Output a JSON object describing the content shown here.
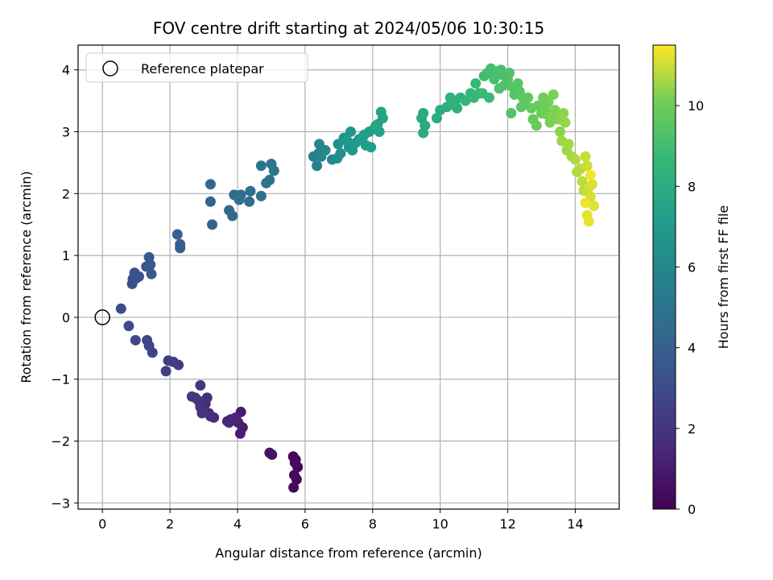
{
  "chart_data": {
    "type": "scatter",
    "title": "FOV centre drift starting at 2024/05/06 10:30:15",
    "xlabel": "Angular distance from reference (arcmin)",
    "ylabel": "Rotation from reference (arcmin)",
    "colorbar_label": "Hours from first FF file",
    "xlim": [
      -0.72,
      15.3
    ],
    "ylim": [
      -3.1,
      4.4
    ],
    "x_ticks": [
      0,
      2,
      4,
      6,
      8,
      10,
      12,
      14
    ],
    "y_ticks": [
      -3,
      -2,
      -1,
      0,
      1,
      2,
      3,
      4
    ],
    "colorbar_range": [
      0,
      11.5
    ],
    "colorbar_ticks": [
      0,
      2,
      4,
      6,
      8,
      10
    ],
    "colormap": "viridis",
    "grid": true,
    "legend": {
      "placement": "top-left",
      "entries": [
        "Reference platepar"
      ]
    },
    "reference_point": {
      "x": 0,
      "y": 0
    },
    "series": [
      {
        "marker": "filled-circle",
        "points": [
          [
            5.65,
            -2.25,
            0.1
          ],
          [
            5.72,
            -2.3,
            0.15
          ],
          [
            5.78,
            -2.42,
            0.2
          ],
          [
            5.68,
            -2.55,
            0.25
          ],
          [
            5.75,
            -2.62,
            0.3
          ],
          [
            5.66,
            -2.75,
            0.35
          ],
          [
            5.7,
            -2.35,
            0.4
          ],
          [
            4.95,
            -2.19,
            0.6
          ],
          [
            5.02,
            -2.22,
            0.7
          ],
          [
            4.1,
            -1.53,
            1.0
          ],
          [
            4.15,
            -1.78,
            1.05
          ],
          [
            4.08,
            -1.88,
            1.1
          ],
          [
            4.02,
            -1.7,
            1.15
          ],
          [
            3.7,
            -1.68,
            1.3
          ],
          [
            3.8,
            -1.65,
            1.35
          ],
          [
            3.95,
            -1.62,
            1.4
          ],
          [
            3.75,
            -1.7,
            1.45
          ],
          [
            3.15,
            -1.55,
            1.6
          ],
          [
            3.3,
            -1.62,
            1.65
          ],
          [
            3.2,
            -1.6,
            1.7
          ],
          [
            3.05,
            -1.4,
            1.75
          ],
          [
            3.1,
            -1.3,
            1.8
          ],
          [
            2.9,
            -1.45,
            1.9
          ],
          [
            2.95,
            -1.55,
            1.95
          ],
          [
            2.85,
            -1.35,
            2.0
          ],
          [
            2.75,
            -1.3,
            2.05
          ],
          [
            2.65,
            -1.28,
            2.1
          ],
          [
            2.9,
            -1.1,
            2.15
          ],
          [
            2.25,
            -0.77,
            2.3
          ],
          [
            2.1,
            -0.72,
            2.35
          ],
          [
            1.95,
            -0.7,
            2.4
          ],
          [
            1.88,
            -0.87,
            2.45
          ],
          [
            1.48,
            -0.57,
            2.6
          ],
          [
            1.38,
            -0.46,
            2.65
          ],
          [
            1.32,
            -0.37,
            2.7
          ],
          [
            0.98,
            -0.37,
            2.8
          ],
          [
            0.78,
            -0.14,
            2.9
          ],
          [
            0.55,
            0.14,
            3.0
          ],
          [
            0.88,
            0.54,
            3.2
          ],
          [
            0.9,
            0.62,
            3.25
          ],
          [
            1.0,
            0.63,
            3.3
          ],
          [
            0.95,
            0.72,
            3.35
          ],
          [
            1.08,
            0.66,
            3.4
          ],
          [
            1.3,
            0.82,
            3.5
          ],
          [
            1.45,
            0.7,
            3.55
          ],
          [
            1.42,
            0.85,
            3.6
          ],
          [
            1.38,
            0.97,
            3.65
          ],
          [
            2.3,
            1.12,
            3.85
          ],
          [
            2.3,
            1.18,
            3.9
          ],
          [
            2.22,
            1.34,
            3.95
          ],
          [
            3.25,
            1.5,
            4.1
          ],
          [
            3.2,
            1.87,
            4.15
          ],
          [
            3.2,
            2.15,
            4.2
          ],
          [
            3.85,
            1.64,
            4.4
          ],
          [
            3.75,
            1.73,
            4.45
          ],
          [
            3.9,
            1.98,
            4.5
          ],
          [
            4.05,
            1.93,
            4.55
          ],
          [
            4.1,
            1.98,
            4.6
          ],
          [
            4.35,
            1.87,
            4.65
          ],
          [
            4.38,
            2.04,
            4.7
          ],
          [
            4.05,
            1.9,
            4.75
          ],
          [
            4.7,
            1.96,
            4.85
          ],
          [
            4.85,
            2.17,
            4.9
          ],
          [
            4.95,
            2.22,
            4.95
          ],
          [
            4.7,
            2.45,
            5.0
          ],
          [
            5.0,
            2.48,
            5.05
          ],
          [
            5.08,
            2.37,
            5.1
          ],
          [
            6.35,
            2.45,
            5.6
          ],
          [
            6.25,
            2.6,
            5.7
          ],
          [
            6.4,
            2.65,
            5.8
          ],
          [
            6.48,
            2.6,
            5.9
          ],
          [
            6.42,
            2.8,
            6.0
          ],
          [
            6.6,
            2.7,
            6.1
          ],
          [
            6.8,
            2.55,
            6.2
          ],
          [
            6.95,
            2.57,
            6.3
          ],
          [
            7.05,
            2.65,
            6.4
          ],
          [
            6.98,
            2.8,
            6.5
          ],
          [
            7.15,
            2.9,
            6.6
          ],
          [
            7.3,
            2.75,
            6.7
          ],
          [
            7.25,
            2.85,
            6.8
          ],
          [
            7.35,
            3.0,
            6.85
          ],
          [
            7.4,
            2.7,
            6.95
          ],
          [
            7.5,
            2.82,
            7.0
          ],
          [
            7.6,
            2.88,
            7.05
          ],
          [
            7.75,
            2.95,
            7.1
          ],
          [
            7.8,
            2.78,
            7.15
          ],
          [
            7.9,
            3.0,
            7.2
          ],
          [
            7.7,
            2.9,
            7.25
          ],
          [
            7.95,
            2.75,
            7.3
          ],
          [
            8.05,
            3.05,
            7.35
          ],
          [
            8.15,
            3.12,
            7.4
          ],
          [
            8.2,
            3.0,
            7.45
          ],
          [
            8.3,
            3.22,
            7.5
          ],
          [
            8.25,
            3.32,
            7.55
          ],
          [
            8.1,
            3.1,
            7.6
          ],
          [
            9.45,
            3.22,
            7.8
          ],
          [
            9.5,
            3.3,
            7.85
          ],
          [
            9.55,
            3.1,
            7.9
          ],
          [
            9.5,
            2.98,
            7.95
          ],
          [
            9.9,
            3.22,
            8.0
          ],
          [
            10.0,
            3.35,
            8.05
          ],
          [
            10.2,
            3.4,
            8.1
          ],
          [
            10.35,
            3.45,
            8.15
          ],
          [
            10.5,
            3.38,
            8.2
          ],
          [
            10.6,
            3.55,
            8.25
          ],
          [
            10.3,
            3.55,
            8.3
          ],
          [
            10.45,
            3.5,
            8.35
          ],
          [
            10.75,
            3.5,
            8.5
          ],
          [
            10.9,
            3.62,
            8.55
          ],
          [
            11.0,
            3.55,
            8.6
          ],
          [
            11.05,
            3.78,
            8.65
          ],
          [
            11.15,
            3.62,
            8.7
          ],
          [
            11.25,
            3.62,
            8.75
          ],
          [
            11.45,
            3.55,
            8.8
          ],
          [
            11.3,
            3.9,
            8.9
          ],
          [
            11.4,
            3.95,
            8.95
          ],
          [
            11.5,
            4.02,
            9.0
          ],
          [
            11.6,
            3.85,
            9.05
          ],
          [
            11.7,
            3.98,
            9.1
          ],
          [
            11.8,
            4.0,
            9.15
          ],
          [
            11.9,
            3.75,
            9.2
          ],
          [
            11.75,
            3.7,
            9.25
          ],
          [
            12.0,
            3.85,
            9.3
          ],
          [
            12.05,
            3.95,
            9.35
          ],
          [
            12.1,
            3.3,
            9.4
          ],
          [
            12.2,
            3.6,
            9.45
          ],
          [
            12.3,
            3.78,
            9.5
          ],
          [
            12.35,
            3.65,
            9.55
          ],
          [
            12.45,
            3.55,
            9.6
          ],
          [
            12.5,
            3.45,
            9.65
          ],
          [
            12.6,
            3.55,
            9.7
          ],
          [
            12.7,
            3.38,
            9.75
          ],
          [
            12.75,
            3.2,
            9.8
          ],
          [
            12.85,
            3.1,
            9.85
          ],
          [
            12.9,
            3.42,
            9.9
          ],
          [
            13.0,
            3.3,
            9.95
          ],
          [
            13.05,
            3.55,
            10.0
          ],
          [
            13.15,
            3.28,
            10.05
          ],
          [
            13.2,
            3.48,
            10.1
          ],
          [
            13.25,
            3.15,
            10.15
          ],
          [
            13.35,
            3.6,
            10.2
          ],
          [
            13.4,
            3.35,
            10.25
          ],
          [
            13.5,
            3.2,
            10.3
          ],
          [
            13.55,
            3.0,
            10.35
          ],
          [
            13.65,
            3.3,
            10.4
          ],
          [
            13.7,
            3.15,
            10.45
          ],
          [
            13.6,
            2.85,
            10.5
          ],
          [
            13.75,
            2.7,
            10.55
          ],
          [
            13.8,
            2.8,
            10.6
          ],
          [
            13.9,
            2.6,
            10.65
          ],
          [
            14.0,
            2.55,
            10.7
          ],
          [
            14.05,
            2.35,
            10.75
          ],
          [
            14.15,
            2.4,
            10.8
          ],
          [
            14.2,
            2.2,
            10.85
          ],
          [
            14.25,
            2.05,
            10.9
          ],
          [
            14.3,
            2.6,
            10.95
          ],
          [
            14.35,
            2.45,
            11.0
          ],
          [
            14.4,
            2.1,
            11.05
          ],
          [
            14.45,
            1.95,
            11.1
          ],
          [
            14.5,
            2.15,
            11.15
          ],
          [
            14.55,
            1.8,
            11.2
          ],
          [
            14.35,
            1.65,
            11.25
          ],
          [
            14.4,
            1.55,
            11.3
          ],
          [
            14.3,
            1.85,
            11.35
          ],
          [
            14.45,
            2.3,
            11.4
          ],
          [
            11.65,
            3.9,
            9.12
          ],
          [
            11.85,
            3.92,
            9.18
          ],
          [
            12.15,
            3.72,
            9.42
          ],
          [
            12.4,
            3.4,
            9.58
          ],
          [
            13.1,
            3.4,
            10.02
          ],
          [
            13.3,
            3.25,
            10.22
          ]
        ]
      }
    ]
  }
}
